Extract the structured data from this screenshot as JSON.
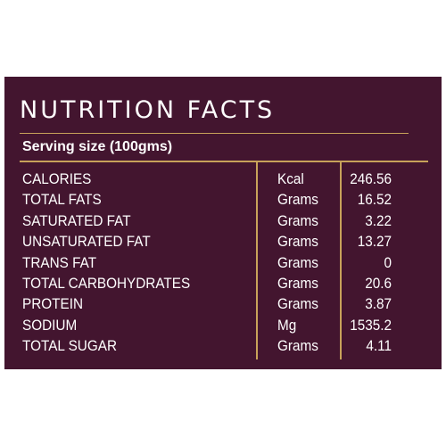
{
  "title": "NUTRITION FACTS",
  "serving_size": "Serving size (100gms)",
  "rows": [
    {
      "name": "CALORIES",
      "unit": "Kcal",
      "value": "246.56"
    },
    {
      "name": "TOTAL FATS",
      "unit": "Grams",
      "value": "16.52"
    },
    {
      "name": "SATURATED FAT",
      "unit": "Grams",
      "value": "3.22"
    },
    {
      "name": "UNSATURATED FAT",
      "unit": "Grams",
      "value": "13.27"
    },
    {
      "name": "TRANS FAT",
      "unit": "Grams",
      "value": "0"
    },
    {
      "name": "TOTAL CARBOHYDRATES",
      "unit": "Grams",
      "value": "20.6"
    },
    {
      "name": "PROTEIN",
      "unit": "Grams",
      "value": "3.87"
    },
    {
      "name": "SODIUM",
      "unit": "Mg",
      "value": "1535.2"
    },
    {
      "name": "TOTAL SUGAR",
      "unit": "Grams",
      "value": "4.11"
    }
  ],
  "colors": {
    "background": "#43152f",
    "rule": "#c8a25a",
    "text": "#ffffff"
  }
}
